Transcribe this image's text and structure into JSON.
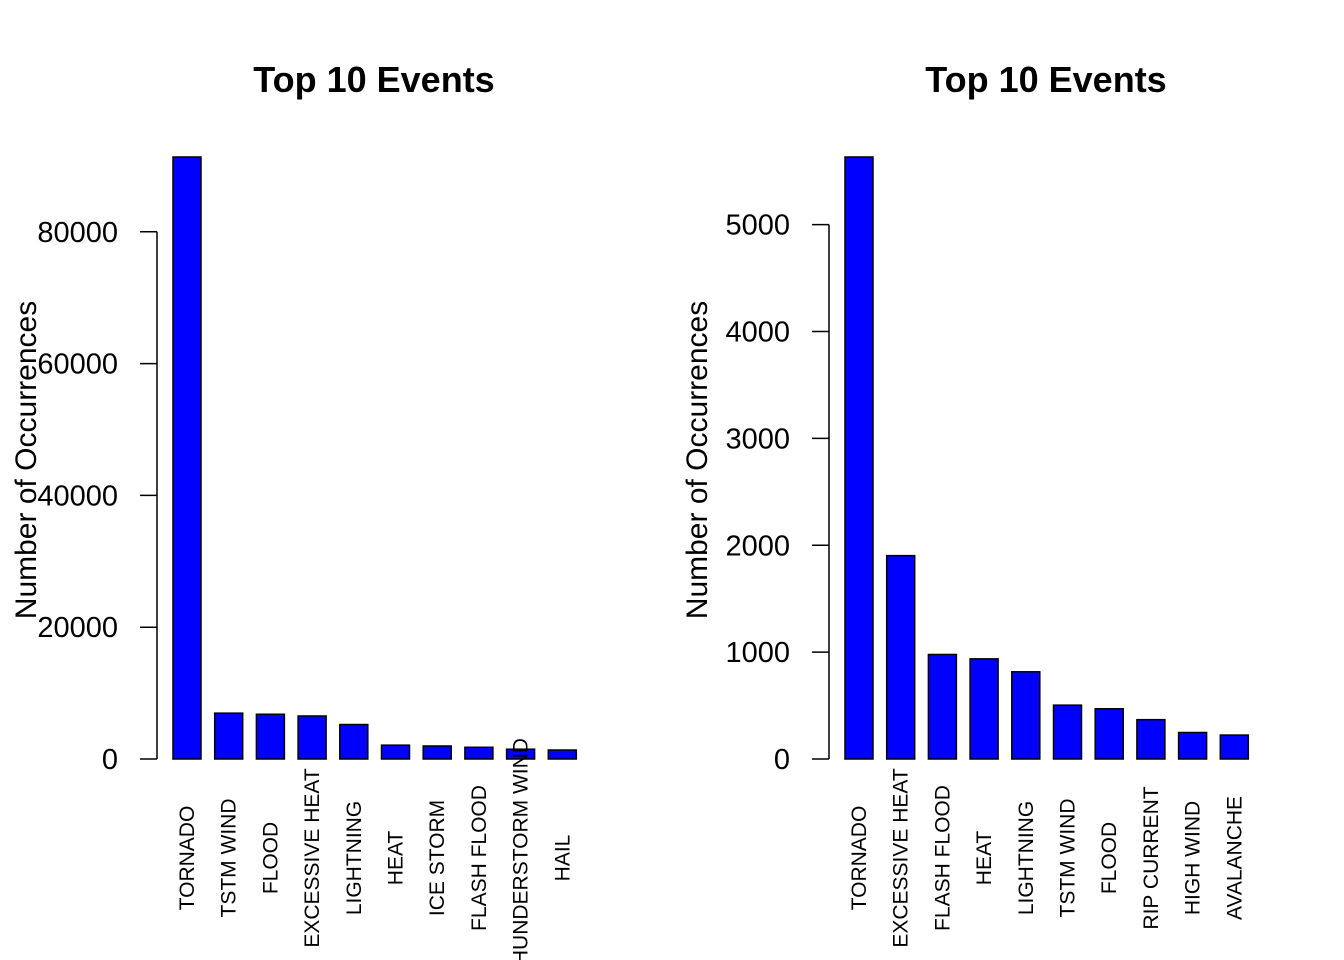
{
  "colors": {
    "bar_fill": "#0000ff",
    "bar_stroke": "#000000",
    "axis": "#000000"
  },
  "chart_data": [
    {
      "type": "bar",
      "title": "Top 10 Events",
      "xlabel": "",
      "ylabel": "Number of Occurrences",
      "categories": [
        "TORNADO",
        "TSTM WIND",
        "FLOOD",
        "EXCESSIVE HEAT",
        "LIGHTNING",
        "HEAT",
        "ICE STORM",
        "FLASH FLOOD",
        "THUNDERSTORM WIND",
        "HAIL"
      ],
      "values": [
        91346,
        6957,
        6789,
        6525,
        5230,
        2100,
        1975,
        1777,
        1488,
        1361
      ],
      "yticks": [
        0,
        20000,
        40000,
        60000,
        80000
      ],
      "ytick_labels": [
        "0",
        "20000",
        "40000",
        "60000",
        "80000"
      ],
      "ylim": [
        0,
        91346
      ],
      "grid": false,
      "legend": "none"
    },
    {
      "type": "bar",
      "title": "Top 10 Events",
      "xlabel": "",
      "ylabel": "Number of Occurrences",
      "categories": [
        "TORNADO",
        "EXCESSIVE HEAT",
        "FLASH FLOOD",
        "HEAT",
        "LIGHTNING",
        "TSTM WIND",
        "FLOOD",
        "RIP CURRENT",
        "HIGH WIND",
        "AVALANCHE"
      ],
      "values": [
        5633,
        1903,
        978,
        937,
        816,
        504,
        470,
        368,
        248,
        224
      ],
      "yticks": [
        0,
        1000,
        2000,
        3000,
        4000,
        5000
      ],
      "ytick_labels": [
        "0",
        "1000",
        "2000",
        "3000",
        "4000",
        "5000"
      ],
      "ylim": [
        0,
        5633
      ],
      "grid": false,
      "legend": "none"
    }
  ]
}
